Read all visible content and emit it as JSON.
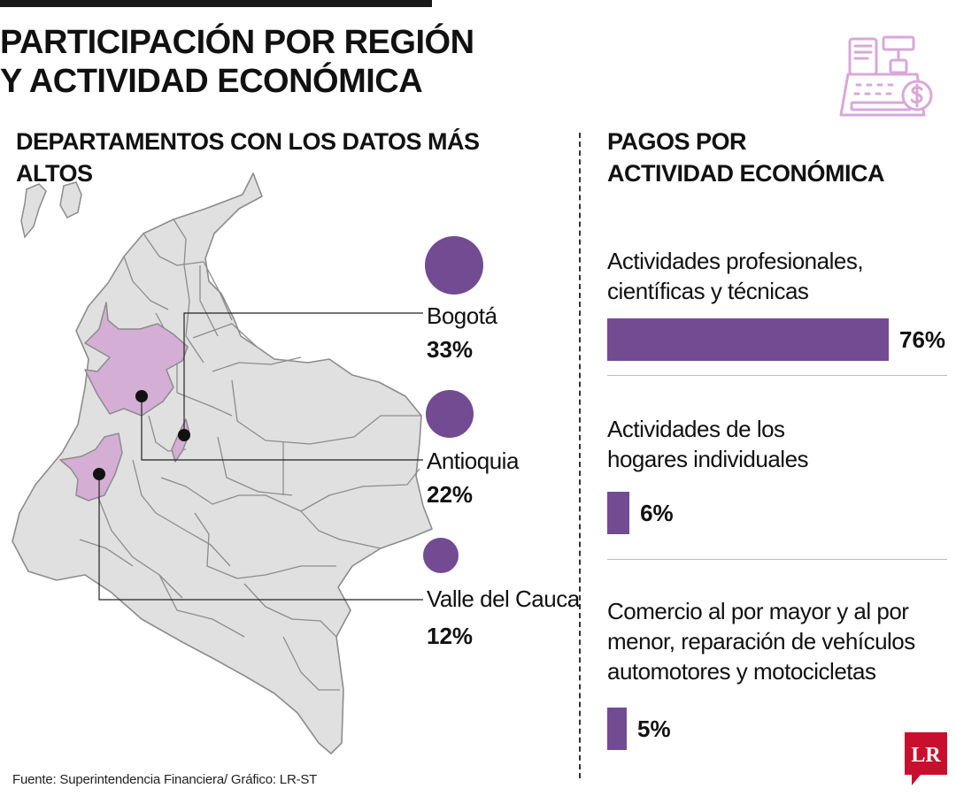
{
  "title_lines": [
    "PARTICIPACIÓN POR REGIÓN",
    "Y ACTIVIDAD ECONÓMICA"
  ],
  "map_section": {
    "heading": "DEPARTAMENTOS CON LOS DATOS MÁS ALTOS",
    "regions": [
      {
        "name": "Bogotá",
        "value_label": "33%",
        "value": 33
      },
      {
        "name": "Antioquia",
        "value_label": "22%",
        "value": 22
      },
      {
        "name": "Valle del Cauca",
        "value_label": "12%",
        "value": 12
      }
    ]
  },
  "payments_section": {
    "heading_lines": [
      "PAGOS POR",
      "ACTIVIDAD ECONÓMICA"
    ],
    "activities": [
      {
        "label_lines": [
          "Actividades profesionales,",
          "científicas y técnicas"
        ],
        "value_label": "76%",
        "value": 76
      },
      {
        "label_lines": [
          "Actividades de los",
          "hogares individuales"
        ],
        "value_label": "6%",
        "value": 6
      },
      {
        "label_lines": [
          "Comercio al por mayor y al por",
          "menor, reparación de vehículos",
          "automotores y motocicletas"
        ],
        "value_label": "5%",
        "value": 5
      }
    ]
  },
  "source": "Fuente: Superintendencia Financiera/ Gráfico: LR-ST",
  "logo_text": "LR",
  "icons": {
    "header": "cash-register-icon",
    "logo": "lr-logo-icon"
  },
  "colors": {
    "accent": "#724b92",
    "highlight_region": "#d4aed4",
    "map_fill": "#e0e0e0",
    "map_stroke": "#8c8c8c",
    "icon_stroke": "#d8a8d8",
    "logo_red": "#c8102e"
  }
}
